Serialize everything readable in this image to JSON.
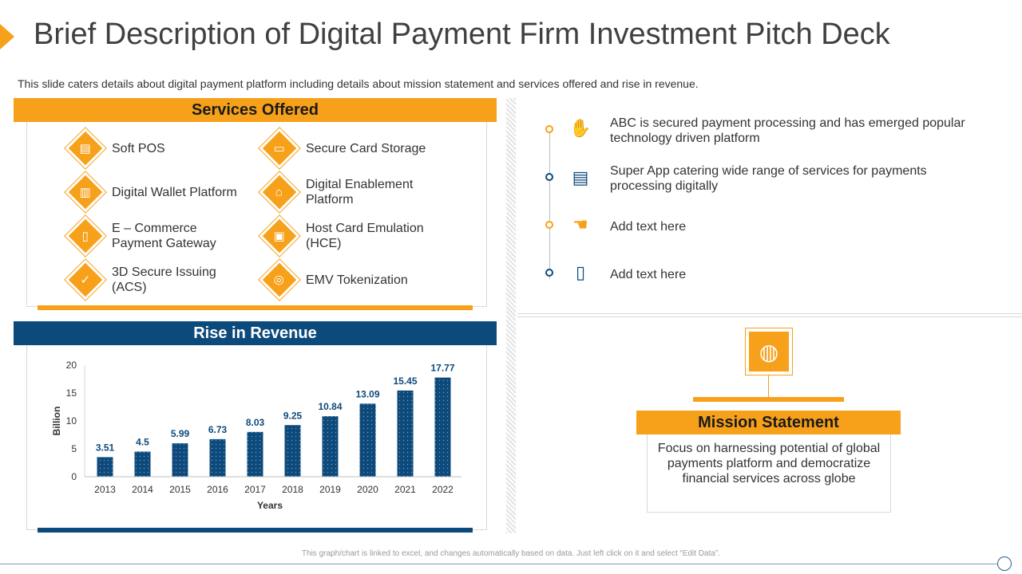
{
  "title": "Brief Description of Digital Payment Firm Investment Pitch Deck",
  "subtitle": "This slide caters details about digital payment platform including details about mission statement and services offered and rise in revenue.",
  "services": {
    "heading": "Services Offered",
    "items": [
      {
        "label": "Soft POS",
        "icon": "pos-terminal-icon"
      },
      {
        "label": "Secure Card Storage",
        "icon": "card-lock-icon"
      },
      {
        "label": "Digital Wallet Platform",
        "icon": "wallet-icon"
      },
      {
        "label": "Digital Enablement Platform",
        "icon": "bank-icon"
      },
      {
        "label": "E – Commerce Payment Gateway",
        "icon": "mobile-payment-icon"
      },
      {
        "label": "Host Card Emulation (HCE)",
        "icon": "card-emulation-icon"
      },
      {
        "label": "3D Secure Issuing (ACS)",
        "icon": "shield-check-icon"
      },
      {
        "label": "EMV Tokenization",
        "icon": "token-icon"
      }
    ]
  },
  "revenue": {
    "heading": "Rise in Revenue"
  },
  "chart_data": {
    "type": "bar",
    "categories": [
      "2013",
      "2014",
      "2015",
      "2016",
      "2017",
      "2018",
      "2019",
      "2020",
      "2021",
      "2022"
    ],
    "values": [
      3.51,
      4.5,
      5.99,
      6.73,
      8.03,
      9.25,
      10.84,
      13.09,
      15.45,
      17.77
    ],
    "value_labels": [
      "3.51",
      "4.5",
      "5.99",
      "6.73",
      "8.03",
      "9.25",
      "10.84",
      "13.09",
      "15.45",
      "17.77"
    ],
    "xlabel": "Years",
    "ylabel": "Billion",
    "ylim": [
      0,
      20
    ],
    "yticks": [
      "0",
      "5",
      "10",
      "15",
      "20"
    ],
    "bar_color": "#0d4a7c",
    "grid": false,
    "legend": "none"
  },
  "highlights": [
    {
      "text": "ABC is secured payment processing and has emerged popular technology driven platform",
      "icon": "hand-payment-icon",
      "color": "#f7a11a"
    },
    {
      "text": "Super App catering wide range of services for payments processing digitally",
      "icon": "card-cash-icon",
      "color": "#0d4a7c"
    },
    {
      "text": "Add text here",
      "icon": "hand-coin-icon",
      "color": "#f7a11a"
    },
    {
      "text": "Add text here",
      "icon": "mobile-card-icon",
      "color": "#0d4a7c"
    }
  ],
  "mission": {
    "heading": "Mission Statement",
    "text": "Focus on harnessing potential of global payments platform and democratize financial services across globe",
    "icon": "globe-coins-icon"
  },
  "footer_note": "This graph/chart is linked to excel, and changes automatically based on data. Just left click on it and select “Edit Data”.",
  "colors": {
    "accent": "#f7a11a",
    "primary": "#0d4a7c"
  }
}
